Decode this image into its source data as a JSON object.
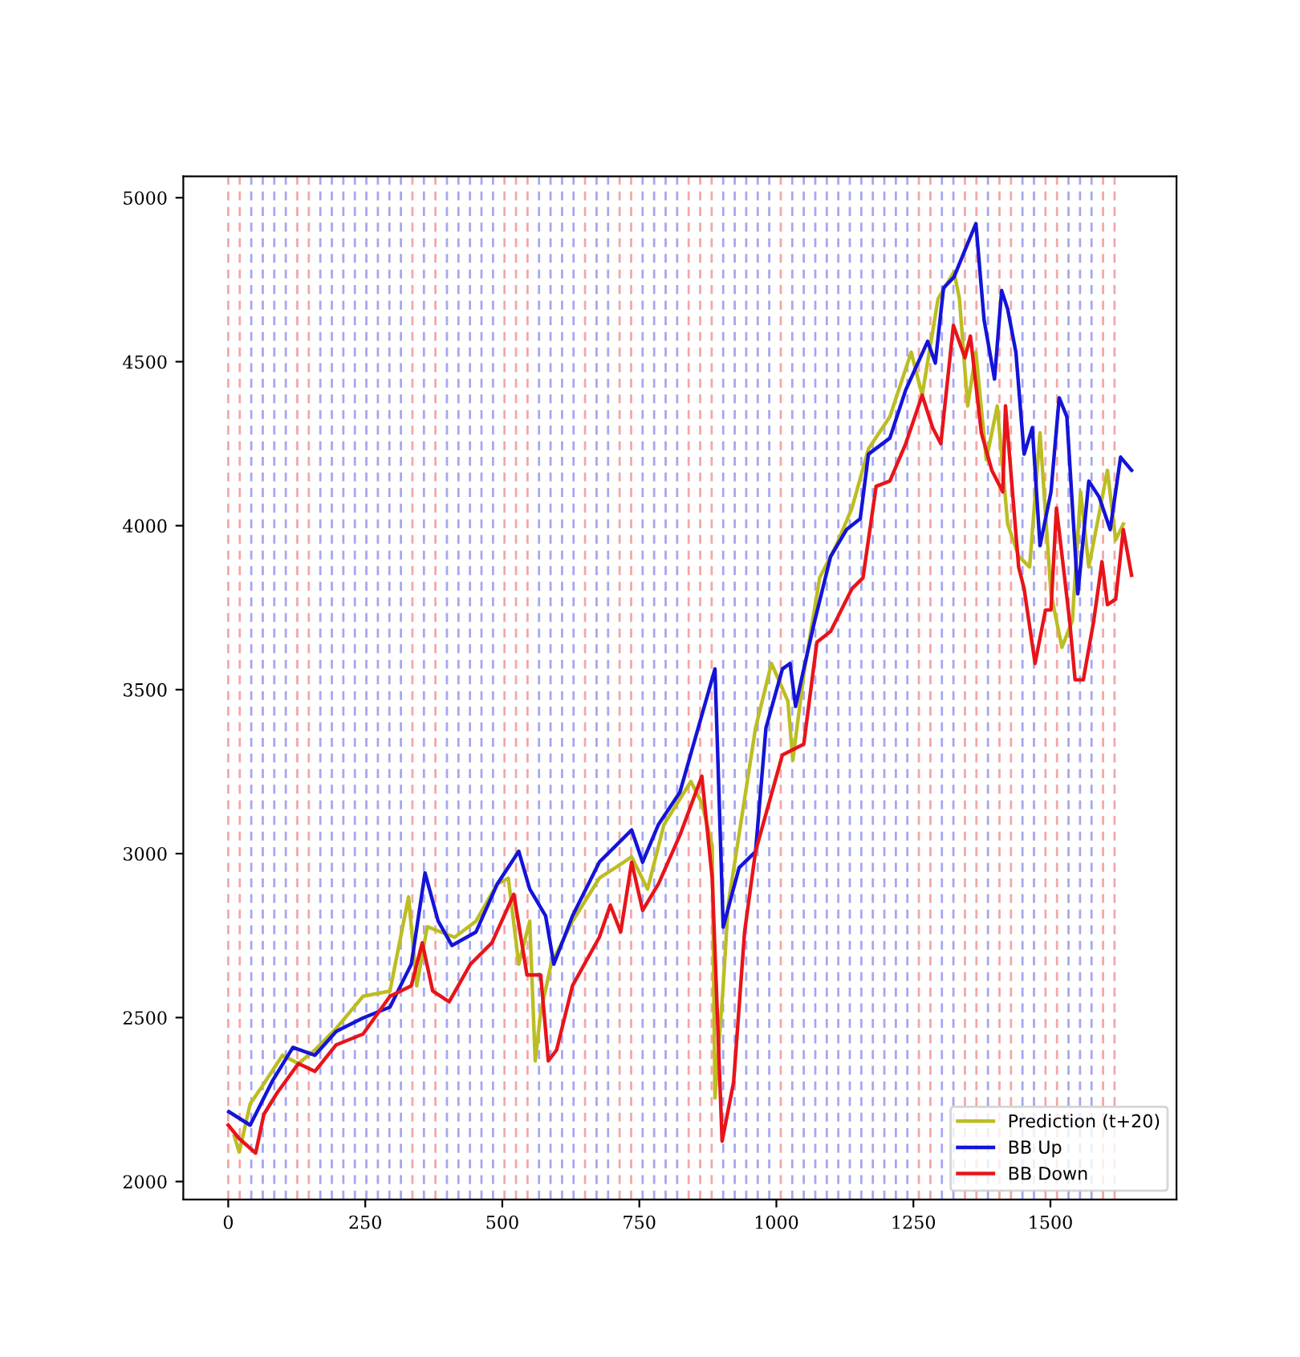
{
  "chart_data": {
    "type": "line",
    "xlim": [
      -82,
      1730
    ],
    "ylim": [
      1945,
      5065
    ],
    "xticks": [
      0,
      250,
      500,
      750,
      1000,
      1250,
      1500
    ],
    "yticks": [
      2000,
      2500,
      3000,
      3500,
      4000,
      4500,
      5000
    ],
    "grid": false,
    "legend": "bottom right",
    "line_style": "solid",
    "marker": "none",
    "series": [
      {
        "name": "Prediction (t+20)",
        "color": "#bcbd22",
        "x": [
          11,
          20,
          40,
          60,
          99,
          128,
          158,
          197,
          246,
          295,
          329,
          344,
          363,
          413,
          452,
          491,
          511,
          530,
          550,
          560,
          570,
          589,
          628,
          677,
          707,
          736,
          765,
          795,
          844,
          864,
          883,
          888,
          903,
          912,
          962,
          991,
          1021,
          1030,
          1050,
          1079,
          1109,
          1138,
          1168,
          1207,
          1246,
          1266,
          1295,
          1324,
          1334,
          1349,
          1364,
          1383,
          1403,
          1422,
          1442,
          1462,
          1481,
          1501,
          1521,
          1540,
          1555,
          1570,
          1589,
          1604,
          1619,
          1633
        ],
        "values": [
          2139,
          2090,
          2237,
          2286,
          2385,
          2360,
          2401,
          2467,
          2565,
          2581,
          2868,
          2597,
          2777,
          2745,
          2794,
          2908,
          2925,
          2663,
          2794,
          2368,
          2516,
          2663,
          2794,
          2925,
          2958,
          2990,
          2892,
          3089,
          3220,
          3154,
          3023,
          2255,
          2597,
          2843,
          3383,
          3580,
          3465,
          3285,
          3547,
          3841,
          3939,
          4054,
          4234,
          4332,
          4529,
          4398,
          4692,
          4774,
          4692,
          4365,
          4529,
          4201,
          4365,
          4005,
          3907,
          3874,
          4283,
          3792,
          3629,
          3710,
          4103,
          3874,
          4038,
          4169,
          3956,
          4005
        ]
      },
      {
        "name": "BB Up",
        "color": "#1414d8",
        "x": [
          1,
          40,
          80,
          118,
          158,
          197,
          246,
          295,
          334,
          359,
          383,
          408,
          452,
          491,
          530,
          550,
          579,
          594,
          628,
          677,
          736,
          756,
          785,
          824,
          888,
          903,
          932,
          962,
          981,
          1011,
          1025,
          1035,
          1050,
          1070,
          1099,
          1128,
          1153,
          1168,
          1207,
          1236,
          1276,
          1290,
          1305,
          1324,
          1344,
          1364,
          1379,
          1398,
          1411,
          1422,
          1437,
          1452,
          1467,
          1481,
          1501,
          1516,
          1530,
          1550,
          1570,
          1589,
          1609,
          1628,
          1648
        ],
        "values": [
          2213,
          2172,
          2305,
          2409,
          2385,
          2458,
          2499,
          2532,
          2663,
          2941,
          2794,
          2720,
          2761,
          2908,
          3007,
          2892,
          2810,
          2663,
          2810,
          2974,
          3072,
          2974,
          3089,
          3187,
          3563,
          2776,
          2957,
          3006,
          3383,
          3563,
          3580,
          3449,
          3563,
          3710,
          3906,
          3988,
          4021,
          4218,
          4267,
          4414,
          4562,
          4496,
          4725,
          4758,
          4840,
          4921,
          4627,
          4447,
          4717,
          4660,
          4529,
          4218,
          4299,
          3939,
          4103,
          4390,
          4332,
          3792,
          4136,
          4087,
          3988,
          4209,
          4169
        ]
      },
      {
        "name": "BB Down",
        "color": "#e8141a",
        "x": [
          0,
          20,
          50,
          65,
          89,
          128,
          158,
          197,
          246,
          295,
          334,
          354,
          373,
          403,
          442,
          481,
          521,
          545,
          570,
          584,
          599,
          628,
          677,
          697,
          716,
          736,
          756,
          785,
          824,
          864,
          883,
          901,
          922,
          942,
          962,
          1011,
          1050,
          1074,
          1099,
          1138,
          1158,
          1182,
          1207,
          1236,
          1266,
          1285,
          1300,
          1323,
          1344,
          1354,
          1374,
          1393,
          1413,
          1418,
          1442,
          1452,
          1472,
          1491,
          1501,
          1511,
          1535,
          1545,
          1560,
          1579,
          1594,
          1604,
          1619,
          1633,
          1648
        ],
        "values": [
          2172,
          2131,
          2087,
          2205,
          2270,
          2360,
          2336,
          2417,
          2450,
          2565,
          2597,
          2728,
          2581,
          2548,
          2663,
          2728,
          2876,
          2630,
          2630,
          2368,
          2401,
          2597,
          2745,
          2843,
          2761,
          2974,
          2827,
          2908,
          3056,
          3236,
          2925,
          2123,
          2303,
          2761,
          3007,
          3301,
          3334,
          3645,
          3678,
          3808,
          3841,
          4120,
          4136,
          4250,
          4398,
          4299,
          4250,
          4611,
          4512,
          4578,
          4283,
          4169,
          4103,
          4365,
          3874,
          3808,
          3580,
          3743,
          3743,
          4054,
          3710,
          3530,
          3530,
          3710,
          3890,
          3759,
          3776,
          3988,
          3849
        ]
      }
    ],
    "ref_lines": [
      {
        "axis": "x",
        "value": 0,
        "color": "#f4a6a6",
        "line_style": "dashed"
      },
      {
        "axis": "x",
        "value": 21,
        "color": "#f4a6a6",
        "line_style": "dashed"
      },
      {
        "axis": "x",
        "value": 42,
        "color": "#a6a6f0",
        "line_style": "dashed"
      },
      {
        "axis": "x",
        "value": 63,
        "color": "#a6a6f0",
        "line_style": "dashed"
      },
      {
        "axis": "x",
        "value": 84,
        "color": "#a6a6f0",
        "line_style": "dashed"
      },
      {
        "axis": "x",
        "value": 105,
        "color": "#a6a6f0",
        "line_style": "dashed"
      },
      {
        "axis": "x",
        "value": 126,
        "color": "#f4a6a6",
        "line_style": "dashed"
      },
      {
        "axis": "x",
        "value": 147,
        "color": "#f4a6a6",
        "line_style": "dashed"
      },
      {
        "axis": "x",
        "value": 168,
        "color": "#a6a6f0",
        "line_style": "dashed"
      },
      {
        "axis": "x",
        "value": 189,
        "color": "#a6a6f0",
        "line_style": "dashed"
      },
      {
        "axis": "x",
        "value": 210,
        "color": "#a6a6f0",
        "line_style": "dashed"
      },
      {
        "axis": "x",
        "value": 231,
        "color": "#a6a6f0",
        "line_style": "dashed"
      },
      {
        "axis": "x",
        "value": 252,
        "color": "#a6a6f0",
        "line_style": "dashed"
      },
      {
        "axis": "x",
        "value": 273,
        "color": "#a6a6f0",
        "line_style": "dashed"
      },
      {
        "axis": "x",
        "value": 294,
        "color": "#a6a6f0",
        "line_style": "dashed"
      },
      {
        "axis": "x",
        "value": 315,
        "color": "#a6a6f0",
        "line_style": "dashed"
      },
      {
        "axis": "x",
        "value": 336,
        "color": "#f4a6a6",
        "line_style": "dashed"
      },
      {
        "axis": "x",
        "value": 357,
        "color": "#a6a6f0",
        "line_style": "dashed"
      },
      {
        "axis": "x",
        "value": 378,
        "color": "#f4a6a6",
        "line_style": "dashed"
      },
      {
        "axis": "x",
        "value": 399,
        "color": "#a6a6f0",
        "line_style": "dashed"
      },
      {
        "axis": "x",
        "value": 420,
        "color": "#a6a6f0",
        "line_style": "dashed"
      },
      {
        "axis": "x",
        "value": 441,
        "color": "#a6a6f0",
        "line_style": "dashed"
      },
      {
        "axis": "x",
        "value": 462,
        "color": "#a6a6f0",
        "line_style": "dashed"
      },
      {
        "axis": "x",
        "value": 483,
        "color": "#a6a6f0",
        "line_style": "dashed"
      },
      {
        "axis": "x",
        "value": 504,
        "color": "#f4a6a6",
        "line_style": "dashed"
      },
      {
        "axis": "x",
        "value": 525,
        "color": "#f4a6a6",
        "line_style": "dashed"
      },
      {
        "axis": "x",
        "value": 546,
        "color": "#f4a6a6",
        "line_style": "dashed"
      },
      {
        "axis": "x",
        "value": 567,
        "color": "#a6a6f0",
        "line_style": "dashed"
      },
      {
        "axis": "x",
        "value": 588,
        "color": "#a6a6f0",
        "line_style": "dashed"
      },
      {
        "axis": "x",
        "value": 609,
        "color": "#a6a6f0",
        "line_style": "dashed"
      },
      {
        "axis": "x",
        "value": 630,
        "color": "#a6a6f0",
        "line_style": "dashed"
      },
      {
        "axis": "x",
        "value": 651,
        "color": "#f4a6a6",
        "line_style": "dashed"
      },
      {
        "axis": "x",
        "value": 672,
        "color": "#a6a6f0",
        "line_style": "dashed"
      },
      {
        "axis": "x",
        "value": 693,
        "color": "#a6a6f0",
        "line_style": "dashed"
      },
      {
        "axis": "x",
        "value": 714,
        "color": "#f4a6a6",
        "line_style": "dashed"
      },
      {
        "axis": "x",
        "value": 735,
        "color": "#f4a6a6",
        "line_style": "dashed"
      },
      {
        "axis": "x",
        "value": 756,
        "color": "#a6a6f0",
        "line_style": "dashed"
      },
      {
        "axis": "x",
        "value": 777,
        "color": "#a6a6f0",
        "line_style": "dashed"
      },
      {
        "axis": "x",
        "value": 798,
        "color": "#a6a6f0",
        "line_style": "dashed"
      },
      {
        "axis": "x",
        "value": 819,
        "color": "#a6a6f0",
        "line_style": "dashed"
      },
      {
        "axis": "x",
        "value": 840,
        "color": "#f4a6a6",
        "line_style": "dashed"
      },
      {
        "axis": "x",
        "value": 861,
        "color": "#f4a6a6",
        "line_style": "dashed"
      },
      {
        "axis": "x",
        "value": 882,
        "color": "#f4a6a6",
        "line_style": "dashed"
      },
      {
        "axis": "x",
        "value": 903,
        "color": "#a6a6f0",
        "line_style": "dashed"
      },
      {
        "axis": "x",
        "value": 924,
        "color": "#a6a6f0",
        "line_style": "dashed"
      },
      {
        "axis": "x",
        "value": 945,
        "color": "#a6a6f0",
        "line_style": "dashed"
      },
      {
        "axis": "x",
        "value": 966,
        "color": "#a6a6f0",
        "line_style": "dashed"
      },
      {
        "axis": "x",
        "value": 987,
        "color": "#a6a6f0",
        "line_style": "dashed"
      },
      {
        "axis": "x",
        "value": 1008,
        "color": "#f4a6a6",
        "line_style": "dashed"
      },
      {
        "axis": "x",
        "value": 1029,
        "color": "#a6a6f0",
        "line_style": "dashed"
      },
      {
        "axis": "x",
        "value": 1050,
        "color": "#a6a6f0",
        "line_style": "dashed"
      },
      {
        "axis": "x",
        "value": 1071,
        "color": "#a6a6f0",
        "line_style": "dashed"
      },
      {
        "axis": "x",
        "value": 1092,
        "color": "#a6a6f0",
        "line_style": "dashed"
      },
      {
        "axis": "x",
        "value": 1113,
        "color": "#a6a6f0",
        "line_style": "dashed"
      },
      {
        "axis": "x",
        "value": 1134,
        "color": "#a6a6f0",
        "line_style": "dashed"
      },
      {
        "axis": "x",
        "value": 1155,
        "color": "#a6a6f0",
        "line_style": "dashed"
      },
      {
        "axis": "x",
        "value": 1176,
        "color": "#a6a6f0",
        "line_style": "dashed"
      },
      {
        "axis": "x",
        "value": 1197,
        "color": "#a6a6f0",
        "line_style": "dashed"
      },
      {
        "axis": "x",
        "value": 1218,
        "color": "#a6a6f0",
        "line_style": "dashed"
      },
      {
        "axis": "x",
        "value": 1239,
        "color": "#a6a6f0",
        "line_style": "dashed"
      },
      {
        "axis": "x",
        "value": 1260,
        "color": "#f4a6a6",
        "line_style": "dashed"
      },
      {
        "axis": "x",
        "value": 1281,
        "color": "#f4a6a6",
        "line_style": "dashed"
      },
      {
        "axis": "x",
        "value": 1302,
        "color": "#a6a6f0",
        "line_style": "dashed"
      },
      {
        "axis": "x",
        "value": 1323,
        "color": "#a6a6f0",
        "line_style": "dashed"
      },
      {
        "axis": "x",
        "value": 1344,
        "color": "#f4a6a6",
        "line_style": "dashed"
      },
      {
        "axis": "x",
        "value": 1365,
        "color": "#f4a6a6",
        "line_style": "dashed"
      },
      {
        "axis": "x",
        "value": 1386,
        "color": "#a6a6f0",
        "line_style": "dashed"
      },
      {
        "axis": "x",
        "value": 1407,
        "color": "#f4a6a6",
        "line_style": "dashed"
      },
      {
        "axis": "x",
        "value": 1428,
        "color": "#f4a6a6",
        "line_style": "dashed"
      },
      {
        "axis": "x",
        "value": 1449,
        "color": "#a6a6f0",
        "line_style": "dashed"
      },
      {
        "axis": "x",
        "value": 1470,
        "color": "#a6a6f0",
        "line_style": "dashed"
      },
      {
        "axis": "x",
        "value": 1491,
        "color": "#f4a6a6",
        "line_style": "dashed"
      },
      {
        "axis": "x",
        "value": 1512,
        "color": "#f4a6a6",
        "line_style": "dashed"
      },
      {
        "axis": "x",
        "value": 1533,
        "color": "#a6a6f0",
        "line_style": "dashed"
      },
      {
        "axis": "x",
        "value": 1554,
        "color": "#a6a6f0",
        "line_style": "dashed"
      },
      {
        "axis": "x",
        "value": 1575,
        "color": "#a6a6f0",
        "line_style": "dashed"
      },
      {
        "axis": "x",
        "value": 1596,
        "color": "#f4a6a6",
        "line_style": "dashed"
      },
      {
        "axis": "x",
        "value": 1617,
        "color": "#f4a6a6",
        "line_style": "dashed"
      }
    ]
  }
}
